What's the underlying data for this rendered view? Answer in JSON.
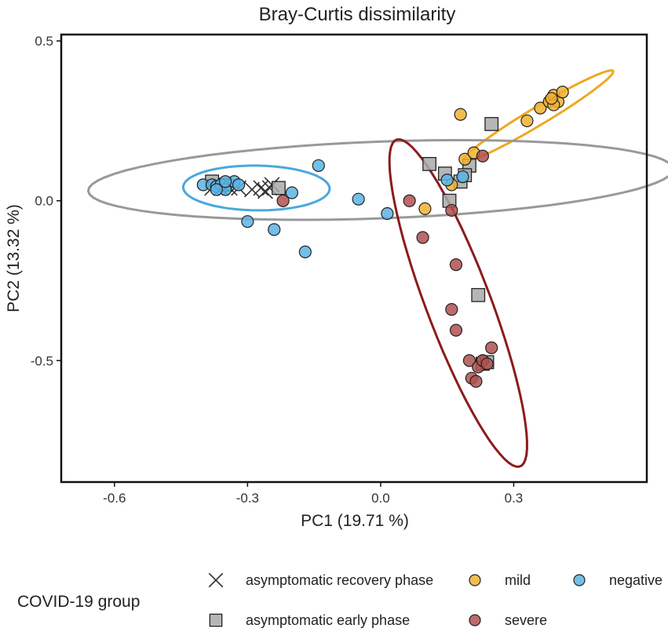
{
  "chart_data": {
    "type": "scatter",
    "title": "Bray-Curtis dissimilarity",
    "xlabel": "PC1 (19.71 %)",
    "ylabel": "PC2 (13.32 %)",
    "xlim": [
      -0.72,
      0.6
    ],
    "ylim": [
      -0.88,
      0.52
    ],
    "x_ticks": [
      -0.6,
      -0.3,
      0.0,
      0.3
    ],
    "x_tick_labels": [
      "-0.6",
      "-0.3",
      "0.0",
      "0.3"
    ],
    "y_ticks": [
      0.5,
      0.0,
      -0.5
    ],
    "y_tick_labels": [
      "0.5",
      "0.0",
      "-0.5"
    ],
    "grid": false,
    "legend_position": "bottom",
    "legend_title": "COVID-19 group",
    "series": [
      {
        "name": "asymptomatic recovery phase",
        "marker": "x",
        "color": "#333333",
        "points": [
          [
            -0.38,
            0.04
          ],
          [
            -0.36,
            0.04
          ],
          [
            -0.34,
            0.04
          ],
          [
            -0.32,
            0.04
          ],
          [
            -0.29,
            0.035
          ],
          [
            -0.27,
            0.04
          ],
          [
            -0.26,
            0.03
          ],
          [
            -0.25,
            0.04
          ],
          [
            -0.245,
            0.05
          ]
        ]
      },
      {
        "name": "asymptomatic early phase",
        "marker": "square",
        "color": "#a9a9a9",
        "points": [
          [
            -0.38,
            0.06
          ],
          [
            -0.35,
            0.05
          ],
          [
            -0.23,
            0.04
          ],
          [
            0.11,
            0.115
          ],
          [
            0.145,
            0.085
          ],
          [
            0.25,
            0.24
          ],
          [
            0.155,
            0.0
          ],
          [
            0.2,
            0.11
          ],
          [
            0.18,
            0.06
          ],
          [
            0.19,
            0.08
          ],
          [
            0.22,
            -0.295
          ],
          [
            0.23,
            -0.51
          ],
          [
            0.24,
            -0.505
          ]
        ]
      },
      {
        "name": "mild",
        "color": "#f0b030",
        "points": [
          [
            0.18,
            0.27
          ],
          [
            0.19,
            0.13
          ],
          [
            0.21,
            0.15
          ],
          [
            0.1,
            -0.025
          ],
          [
            0.16,
            0.05
          ],
          [
            0.33,
            0.25
          ],
          [
            0.36,
            0.29
          ],
          [
            0.38,
            0.31
          ],
          [
            0.39,
            0.33
          ],
          [
            0.4,
            0.31
          ],
          [
            0.41,
            0.34
          ],
          [
            0.39,
            0.3
          ],
          [
            0.385,
            0.32
          ]
        ]
      },
      {
        "name": "negative",
        "color": "#5bb4e5",
        "points": [
          [
            -0.4,
            0.05
          ],
          [
            -0.38,
            0.05
          ],
          [
            -0.37,
            0.045
          ],
          [
            -0.36,
            0.05
          ],
          [
            -0.34,
            0.05
          ],
          [
            -0.33,
            0.06
          ],
          [
            -0.32,
            0.05
          ],
          [
            -0.35,
            0.035
          ],
          [
            -0.37,
            0.035
          ],
          [
            -0.35,
            0.06
          ],
          [
            -0.2,
            0.025
          ],
          [
            -0.14,
            0.11
          ],
          [
            -0.05,
            0.005
          ],
          [
            0.015,
            -0.04
          ],
          [
            -0.3,
            -0.065
          ],
          [
            -0.24,
            -0.09
          ],
          [
            -0.17,
            -0.16
          ],
          [
            0.15,
            0.065
          ],
          [
            0.185,
            0.075
          ]
        ]
      },
      {
        "name": "severe",
        "color": "#b05050",
        "points": [
          [
            -0.22,
            0.0
          ],
          [
            0.065,
            0.0
          ],
          [
            0.095,
            -0.115
          ],
          [
            0.16,
            -0.03
          ],
          [
            0.23,
            0.14
          ],
          [
            0.17,
            -0.2
          ],
          [
            0.16,
            -0.34
          ],
          [
            0.17,
            -0.405
          ],
          [
            0.2,
            -0.5
          ],
          [
            0.205,
            -0.555
          ],
          [
            0.215,
            -0.565
          ],
          [
            0.22,
            -0.52
          ],
          [
            0.23,
            -0.5
          ],
          [
            0.24,
            -0.51
          ],
          [
            0.25,
            -0.46
          ]
        ]
      }
    ],
    "ellipses": [
      {
        "group": "mild",
        "color": "#f0a820",
        "center": [
          0.355,
          0.265
        ],
        "semi_major": 0.22,
        "semi_minor": 0.025,
        "angle_deg": 40
      },
      {
        "group": "negative",
        "color": "#4aa8dc",
        "center": [
          -0.28,
          0.04
        ],
        "semi_major": 0.165,
        "semi_minor": 0.07,
        "angle_deg": -1
      },
      {
        "group": "all",
        "color": "#999999",
        "center": [
          0.0,
          0.065
        ],
        "semi_major": 0.66,
        "semi_minor": 0.12,
        "angle_deg": 3
      },
      {
        "group": "severe",
        "color": "#8b1c1c",
        "center": [
          0.175,
          -0.32
        ],
        "semi_major": 0.53,
        "semi_minor": 0.075,
        "angle_deg": 105
      }
    ],
    "legend_rows": [
      [
        {
          "label": "asymptomatic recovery phase",
          "series": 0
        },
        {
          "label": "mild",
          "series": 2
        },
        {
          "label": "negative",
          "series": 3
        }
      ],
      [
        {
          "label": "asymptomatic early phase",
          "series": 1
        },
        {
          "label": "severe",
          "series": 4
        }
      ]
    ]
  }
}
